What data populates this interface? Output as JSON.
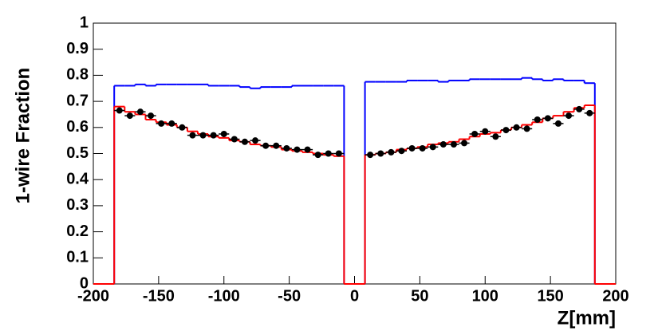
{
  "chart_data": {
    "type": "histogram",
    "x_label": "Z[mm]",
    "y_label": "1-wire Fraction",
    "bins": [
      -200,
      -192,
      -184,
      -176,
      -168,
      -160,
      -152,
      -144,
      -136,
      -128,
      -120,
      -112,
      -104,
      -96,
      -88,
      -80,
      -72,
      -64,
      -56,
      -48,
      -40,
      -32,
      -24,
      -16,
      -8,
      0,
      8,
      16,
      24,
      32,
      40,
      48,
      56,
      64,
      72,
      80,
      88,
      96,
      104,
      112,
      120,
      128,
      136,
      144,
      152,
      160,
      168,
      176,
      184,
      192,
      200
    ],
    "series": [
      {
        "color": "#0000ff",
        "style": "step",
        "values": [
          0,
          0,
          0.76,
          0.76,
          0.765,
          0.76,
          0.765,
          0.765,
          0.765,
          0.765,
          0.765,
          0.76,
          0.76,
          0.76,
          0.755,
          0.75,
          0.755,
          0.755,
          0.755,
          0.76,
          0.76,
          0.76,
          0.76,
          0.76,
          0,
          0,
          0.775,
          0.775,
          0.775,
          0.775,
          0.78,
          0.78,
          0.78,
          0.775,
          0.78,
          0.78,
          0.785,
          0.785,
          0.785,
          0.785,
          0.785,
          0.79,
          0.785,
          0.78,
          0.785,
          0.78,
          0.78,
          0.77,
          0,
          0
        ]
      },
      {
        "color": "#ff0000",
        "style": "step",
        "values": [
          0,
          0,
          0.68,
          0.66,
          0.65,
          0.63,
          0.62,
          0.61,
          0.6,
          0.585,
          0.575,
          0.565,
          0.56,
          0.55,
          0.545,
          0.535,
          0.53,
          0.525,
          0.515,
          0.51,
          0.505,
          0.5,
          0.495,
          0.49,
          0,
          0,
          0.495,
          0.5,
          0.505,
          0.515,
          0.52,
          0.525,
          0.535,
          0.54,
          0.545,
          0.555,
          0.565,
          0.575,
          0.58,
          0.59,
          0.6,
          0.61,
          0.62,
          0.635,
          0.645,
          0.66,
          0.675,
          0.685,
          0,
          0
        ]
      },
      {
        "color": "#000000",
        "style": "points",
        "values": [
          null,
          null,
          0.665,
          0.645,
          0.66,
          0.645,
          0.615,
          0.615,
          0.6,
          0.57,
          0.57,
          0.57,
          0.575,
          0.555,
          0.545,
          0.55,
          0.53,
          0.53,
          0.52,
          0.515,
          0.515,
          0.495,
          0.5,
          0.5,
          null,
          null,
          0.495,
          0.5,
          0.505,
          0.51,
          0.52,
          0.52,
          0.525,
          0.535,
          0.535,
          0.54,
          0.575,
          0.585,
          0.565,
          0.59,
          0.6,
          0.595,
          0.63,
          0.635,
          0.615,
          0.645,
          0.67,
          0.655,
          null,
          null
        ],
        "errors": [
          null,
          null,
          0.008,
          0.008,
          0.008,
          0.008,
          0.008,
          0.008,
          0.008,
          0.008,
          0.008,
          0.008,
          0.008,
          0.008,
          0.008,
          0.008,
          0.008,
          0.008,
          0.008,
          0.008,
          0.008,
          0.008,
          0.008,
          0.008,
          null,
          null,
          0.008,
          0.008,
          0.008,
          0.008,
          0.008,
          0.008,
          0.008,
          0.008,
          0.008,
          0.008,
          0.008,
          0.008,
          0.008,
          0.008,
          0.008,
          0.008,
          0.008,
          0.008,
          0.008,
          0.008,
          0.008,
          0.008,
          null,
          null
        ]
      }
    ],
    "xlim": [
      -200,
      200
    ],
    "xticks": [
      -200,
      -150,
      -100,
      -50,
      0,
      50,
      100,
      150,
      200
    ],
    "ylim": [
      0,
      1
    ],
    "yticks": [
      0,
      0.1,
      0.2,
      0.3,
      0.4,
      0.5,
      0.6,
      0.7,
      0.8,
      0.9,
      1
    ]
  }
}
